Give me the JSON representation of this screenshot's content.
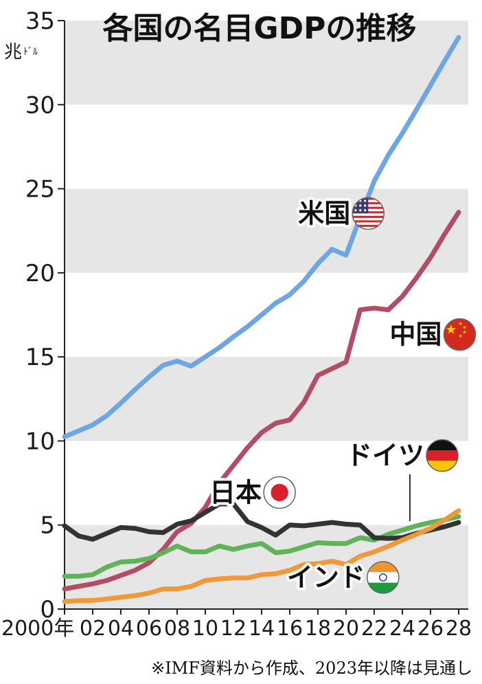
{
  "chart_data": {
    "type": "line",
    "title": "各国の名目GDPの推移",
    "unit": [
      "兆",
      "ﾄﾞﾙ"
    ],
    "ylim": [
      0,
      35
    ],
    "yticks": [
      0,
      5,
      10,
      15,
      20,
      25,
      30,
      35
    ],
    "xlim": [
      2000,
      2028
    ],
    "xticks": [
      {
        "x": 2000,
        "label": "2000年"
      },
      {
        "x": 2002,
        "label": "02"
      },
      {
        "x": 2004,
        "label": "04"
      },
      {
        "x": 2006,
        "label": "06"
      },
      {
        "x": 2008,
        "label": "08"
      },
      {
        "x": 2010,
        "label": "10"
      },
      {
        "x": 2012,
        "label": "12"
      },
      {
        "x": 2014,
        "label": "14"
      },
      {
        "x": 2016,
        "label": "16"
      },
      {
        "x": 2018,
        "label": "18"
      },
      {
        "x": 2020,
        "label": "20"
      },
      {
        "x": 2022,
        "label": "22"
      },
      {
        "x": 2024,
        "label": "24"
      },
      {
        "x": 2026,
        "label": "26"
      },
      {
        "x": 2028,
        "label": "28"
      }
    ],
    "bands": [
      [
        0,
        5
      ],
      [
        10,
        15
      ],
      [
        20,
        25
      ],
      [
        30,
        35
      ]
    ],
    "x": [
      2000,
      2001,
      2002,
      2003,
      2004,
      2005,
      2006,
      2007,
      2008,
      2009,
      2010,
      2011,
      2012,
      2013,
      2014,
      2015,
      2016,
      2017,
      2018,
      2019,
      2020,
      2021,
      2022,
      2023,
      2024,
      2025,
      2026,
      2027,
      2028
    ],
    "series": [
      {
        "name": "米国",
        "color": "#6ea6e4",
        "values": [
          10.25,
          10.6,
          10.95,
          11.5,
          12.25,
          13.05,
          13.8,
          14.5,
          14.75,
          14.45,
          15.0,
          15.55,
          16.2,
          16.8,
          17.5,
          18.2,
          18.7,
          19.5,
          20.55,
          21.4,
          21.05,
          23.3,
          25.45,
          27.0,
          28.3,
          29.7,
          31.15,
          32.6,
          34.0
        ],
        "label_x": 2016.6,
        "label_y": 23.0,
        "flag": "us-flag"
      },
      {
        "name": "中国",
        "color": "#b34d66",
        "values": [
          1.2,
          1.35,
          1.5,
          1.7,
          2.0,
          2.3,
          2.75,
          3.55,
          4.6,
          5.1,
          6.05,
          7.5,
          8.55,
          9.6,
          10.5,
          11.05,
          11.25,
          12.3,
          13.9,
          14.3,
          14.7,
          17.8,
          17.9,
          17.8,
          18.6,
          19.7,
          20.9,
          22.3,
          23.6
        ],
        "label_x": 2023.1,
        "label_y": 15.8,
        "flag": "china-flag"
      },
      {
        "name": "ドイツ",
        "color": "#5fb45a",
        "values": [
          1.95,
          1.95,
          2.05,
          2.5,
          2.8,
          2.85,
          3.0,
          3.35,
          3.75,
          3.4,
          3.4,
          3.75,
          3.55,
          3.75,
          3.9,
          3.35,
          3.45,
          3.7,
          3.95,
          3.9,
          3.9,
          4.25,
          4.1,
          4.45,
          4.7,
          4.95,
          5.15,
          5.3,
          5.5
        ],
        "label_x": 2020.0,
        "label_y": 8.6,
        "flag": "germany-flag"
      },
      {
        "name": "日本",
        "color": "#333333",
        "values": [
          4.95,
          4.35,
          4.15,
          4.5,
          4.85,
          4.8,
          4.6,
          4.55,
          5.05,
          5.25,
          5.75,
          6.25,
          6.25,
          5.2,
          4.85,
          4.4,
          5.0,
          4.95,
          5.05,
          5.15,
          5.05,
          5.0,
          4.25,
          4.2,
          4.25,
          4.5,
          4.7,
          4.9,
          5.15
        ],
        "label_x": 2010.3,
        "label_y": 6.4,
        "flag": "japan-flag"
      },
      {
        "name": "インド",
        "color": "#f0993a",
        "values": [
          0.45,
          0.5,
          0.52,
          0.6,
          0.7,
          0.8,
          0.95,
          1.2,
          1.2,
          1.35,
          1.7,
          1.8,
          1.85,
          1.85,
          2.05,
          2.1,
          2.3,
          2.65,
          2.7,
          2.85,
          2.65,
          3.15,
          3.4,
          3.73,
          4.1,
          4.45,
          4.8,
          5.3,
          5.85
        ],
        "label_x": 2015.8,
        "label_y": 1.35,
        "flag": "india-flag"
      }
    ],
    "note": "※IMF資料から作成、2023年以降は見通し"
  }
}
